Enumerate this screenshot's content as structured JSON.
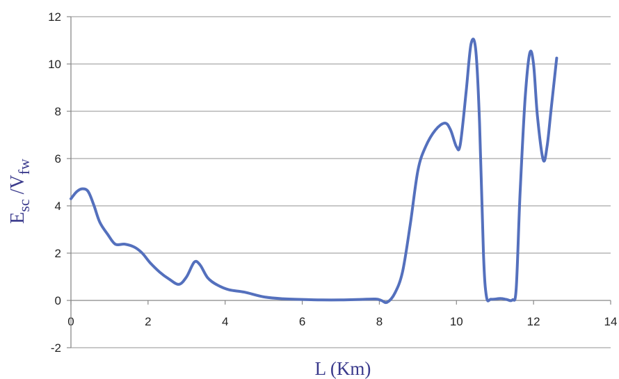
{
  "chart_data": {
    "type": "line",
    "title": "",
    "xlabel": "L (Km)",
    "ylabel": {
      "main": "E",
      "sub1": "sc",
      "mid": " /V",
      "sub2": "fw"
    },
    "xlim": [
      0,
      14
    ],
    "ylim": [
      -2,
      12
    ],
    "x_ticks": [
      0,
      2,
      4,
      6,
      8,
      10,
      12,
      14
    ],
    "y_ticks": [
      -2,
      0,
      2,
      4,
      6,
      8,
      10,
      12
    ],
    "grid": "horizontal",
    "line_color": "#5470bd",
    "series": [
      {
        "name": "",
        "points": [
          [
            0.0,
            4.3
          ],
          [
            0.15,
            4.6
          ],
          [
            0.3,
            4.72
          ],
          [
            0.45,
            4.6
          ],
          [
            0.6,
            4.0
          ],
          [
            0.75,
            3.3
          ],
          [
            0.95,
            2.8
          ],
          [
            1.15,
            2.38
          ],
          [
            1.4,
            2.38
          ],
          [
            1.65,
            2.25
          ],
          [
            1.85,
            2.0
          ],
          [
            2.05,
            1.6
          ],
          [
            2.3,
            1.2
          ],
          [
            2.55,
            0.9
          ],
          [
            2.8,
            0.68
          ],
          [
            3.0,
            1.0
          ],
          [
            3.2,
            1.62
          ],
          [
            3.35,
            1.5
          ],
          [
            3.55,
            0.95
          ],
          [
            3.8,
            0.65
          ],
          [
            4.1,
            0.45
          ],
          [
            4.5,
            0.35
          ],
          [
            5.0,
            0.15
          ],
          [
            5.5,
            0.07
          ],
          [
            6.0,
            0.04
          ],
          [
            6.5,
            0.02
          ],
          [
            7.0,
            0.02
          ],
          [
            7.5,
            0.04
          ],
          [
            7.9,
            0.06
          ],
          [
            8.05,
            0.0
          ],
          [
            8.2,
            -0.08
          ],
          [
            8.4,
            0.3
          ],
          [
            8.6,
            1.2
          ],
          [
            8.8,
            3.2
          ],
          [
            9.0,
            5.5
          ],
          [
            9.2,
            6.5
          ],
          [
            9.45,
            7.2
          ],
          [
            9.7,
            7.5
          ],
          [
            9.85,
            7.2
          ],
          [
            10.0,
            6.5
          ],
          [
            10.1,
            6.6
          ],
          [
            10.25,
            8.8
          ],
          [
            10.38,
            10.85
          ],
          [
            10.5,
            10.6
          ],
          [
            10.6,
            7.5
          ],
          [
            10.7,
            2.0
          ],
          [
            10.78,
            0.15
          ],
          [
            10.9,
            0.05
          ],
          [
            11.15,
            0.08
          ],
          [
            11.3,
            0.04
          ],
          [
            11.45,
            0.02
          ],
          [
            11.55,
            0.5
          ],
          [
            11.65,
            4.5
          ],
          [
            11.78,
            8.5
          ],
          [
            11.9,
            10.45
          ],
          [
            12.0,
            10.0
          ],
          [
            12.1,
            7.8
          ],
          [
            12.25,
            5.95
          ],
          [
            12.35,
            6.5
          ],
          [
            12.45,
            8.0
          ],
          [
            12.6,
            10.25
          ]
        ]
      }
    ]
  }
}
